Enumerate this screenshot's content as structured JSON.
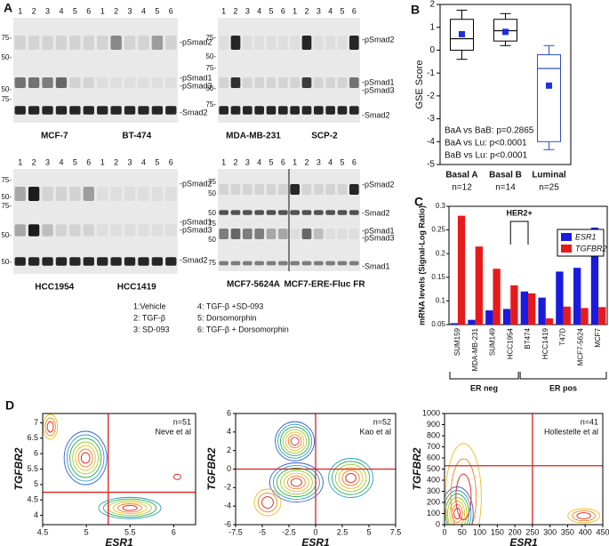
{
  "panel_labels": [
    "A",
    "B",
    "C",
    "D"
  ],
  "blots": [
    {
      "lanes": [
        "1",
        "2",
        "3",
        "4",
        "5",
        "6",
        "1",
        "2",
        "3",
        "4",
        "5",
        "6"
      ],
      "labels": [
        "MCF-7",
        "BT-474"
      ],
      "bands": [
        "-pSmad2",
        "-pSmad1",
        "-pSmad3",
        "-Smad2"
      ],
      "markers": [
        "75-",
        "50-",
        "50-",
        "75-"
      ]
    },
    {
      "lanes": [
        "1",
        "2",
        "3",
        "4",
        "5",
        "6",
        "1",
        "2",
        "3",
        "4",
        "5",
        "6"
      ],
      "labels": [
        "MDA-MB-231",
        "SCP-2"
      ],
      "bands": [
        "-pSmad2",
        "-pSmad1",
        "-pSmad3",
        "-Smad2"
      ],
      "markers": [
        "75-",
        "50-",
        "75-",
        "50-",
        "75-"
      ]
    },
    {
      "lanes": [
        "1",
        "2",
        "3",
        "4",
        "5",
        "6",
        "1",
        "2",
        "3",
        "4",
        "5",
        "6"
      ],
      "labels": [
        "HCC1954",
        "HCC1419"
      ],
      "bands": [
        "-pSmad2",
        "-pSmad1",
        "-pSmad3",
        "-Smad2"
      ],
      "markers": [
        "75-",
        "50-",
        "75-",
        "50-",
        "50-"
      ]
    },
    {
      "lanes": [
        "1",
        "2",
        "3",
        "4",
        "5",
        "6",
        "1",
        "2",
        "3",
        "4",
        "5",
        "6"
      ],
      "labels": [
        "MCF7-5624A",
        "MCF7-ERE-Fluc FR"
      ],
      "bands": [
        "-pSmad2",
        "-Smad2",
        "-pSmad1",
        "-pSmad3",
        "-Smad1"
      ],
      "markers": [
        "75",
        "50",
        "50",
        "75",
        "50",
        "75"
      ]
    }
  ],
  "treatment_legend": [
    "1:Vehicle",
    "2: TGF-β",
    "3: SD-093",
    "4: TGF-β +SD-093",
    "5: Dorsomorphin",
    "6: TGF-β + Dorsomorphin"
  ],
  "chart_data": [
    {
      "type": "box",
      "ylabel": "GSE Score",
      "categories": [
        "Basal A",
        "Basal B",
        "Luminal"
      ],
      "n_labels": [
        "n=12",
        "n=14",
        "n=25"
      ],
      "boxes": [
        {
          "whisker_low": -0.4,
          "q1": 0,
          "median": 0.5,
          "q3": 1.35,
          "whisker_high": 1.75,
          "mean": 0.7
        },
        {
          "whisker_low": 0.2,
          "q1": 0.4,
          "median": 0.85,
          "q3": 1.35,
          "whisker_high": 1.6,
          "mean": 0.8
        },
        {
          "whisker_low": -4.35,
          "q1": -4.0,
          "median": -0.8,
          "q3": -0.2,
          "whisker_high": 0.2,
          "mean": -1.55
        }
      ],
      "colors": [
        "#000000",
        "#000000",
        "#2f4fbf"
      ],
      "mean_color": "#1f2fe0",
      "ylim": [
        -5,
        2
      ],
      "yticks": [
        -5,
        -4,
        -3,
        -2,
        -1,
        0,
        1,
        2
      ],
      "annotations": [
        "BaA vs BaB: p=0.2865",
        "BaA vs Lu: p<0.0001",
        "BaB vs Lu: p<0.0001"
      ]
    },
    {
      "type": "bar",
      "ylabel": "mRNA levels (Signal-Log Ratio)",
      "categories": [
        "SUM159",
        "MDA-MB-231",
        "SUM149",
        "HCC1954",
        "BT474",
        "HCC1419",
        "T47D",
        "MCF7-5624",
        "MCF7"
      ],
      "series": [
        {
          "name": "ESR1",
          "color": "#1a1ae0",
          "values": [
            0.053,
            0.06,
            0.08,
            0.083,
            0.12,
            0.107,
            0.162,
            0.17,
            0.255
          ]
        },
        {
          "name": "TGFBR2",
          "color": "#e8191b",
          "values": [
            0.28,
            0.215,
            0.168,
            0.133,
            0.116,
            0.063,
            0.088,
            0.085,
            0.087
          ]
        }
      ],
      "ylim": [
        0.05,
        0.3
      ],
      "yticks": [
        0.05,
        0.1,
        0.15,
        0.2,
        0.25,
        0.3
      ],
      "legend": "upper right",
      "annotations": [
        "HER2+"
      ],
      "groups": [
        "ER neg",
        "ER pos"
      ]
    },
    {
      "type": "contour",
      "xlabel": "ESR1",
      "ylabel": "TGFBR2",
      "xlim": [
        4.5,
        6.25
      ],
      "ylim": [
        3.7,
        7.3
      ],
      "xticks": [
        4.5,
        5,
        5.5,
        6
      ],
      "yticks": [
        4,
        4.5,
        5,
        5.5,
        6,
        6.5,
        7
      ],
      "thresholds": {
        "x": 5.25,
        "y": 4.75
      },
      "threshold_color": "#e0201b",
      "annotations": [
        "n=51",
        "Neve et al"
      ]
    },
    {
      "type": "contour",
      "xlabel": "ESR1",
      "ylabel": "TGFBR2",
      "xlim": [
        -7.5,
        7.5
      ],
      "ylim": [
        -6,
        6
      ],
      "xticks": [
        -7.5,
        -5,
        -2.5,
        0,
        2.5,
        5,
        7.5
      ],
      "yticks": [
        -6,
        -4,
        -2,
        0,
        2,
        4,
        6
      ],
      "thresholds": {
        "x": 0,
        "y": 0
      },
      "threshold_color": "#e0201b",
      "annotations": [
        "n=52",
        "Kao et al"
      ]
    },
    {
      "type": "contour",
      "xlabel": "ESR1",
      "ylabel": "TGFBR2",
      "xlim": [
        0,
        450
      ],
      "ylim": [
        0,
        1000
      ],
      "xticks": [
        0,
        50,
        100,
        150,
        200,
        250,
        300,
        350,
        400,
        450
      ],
      "yticks": [
        0,
        100,
        200,
        300,
        400,
        500,
        600,
        700,
        800,
        900,
        1000
      ],
      "thresholds": {
        "x": 250,
        "y": 530
      },
      "threshold_color": "#e0201b",
      "annotations": [
        "n=41",
        "Hollestelle et al"
      ]
    }
  ]
}
